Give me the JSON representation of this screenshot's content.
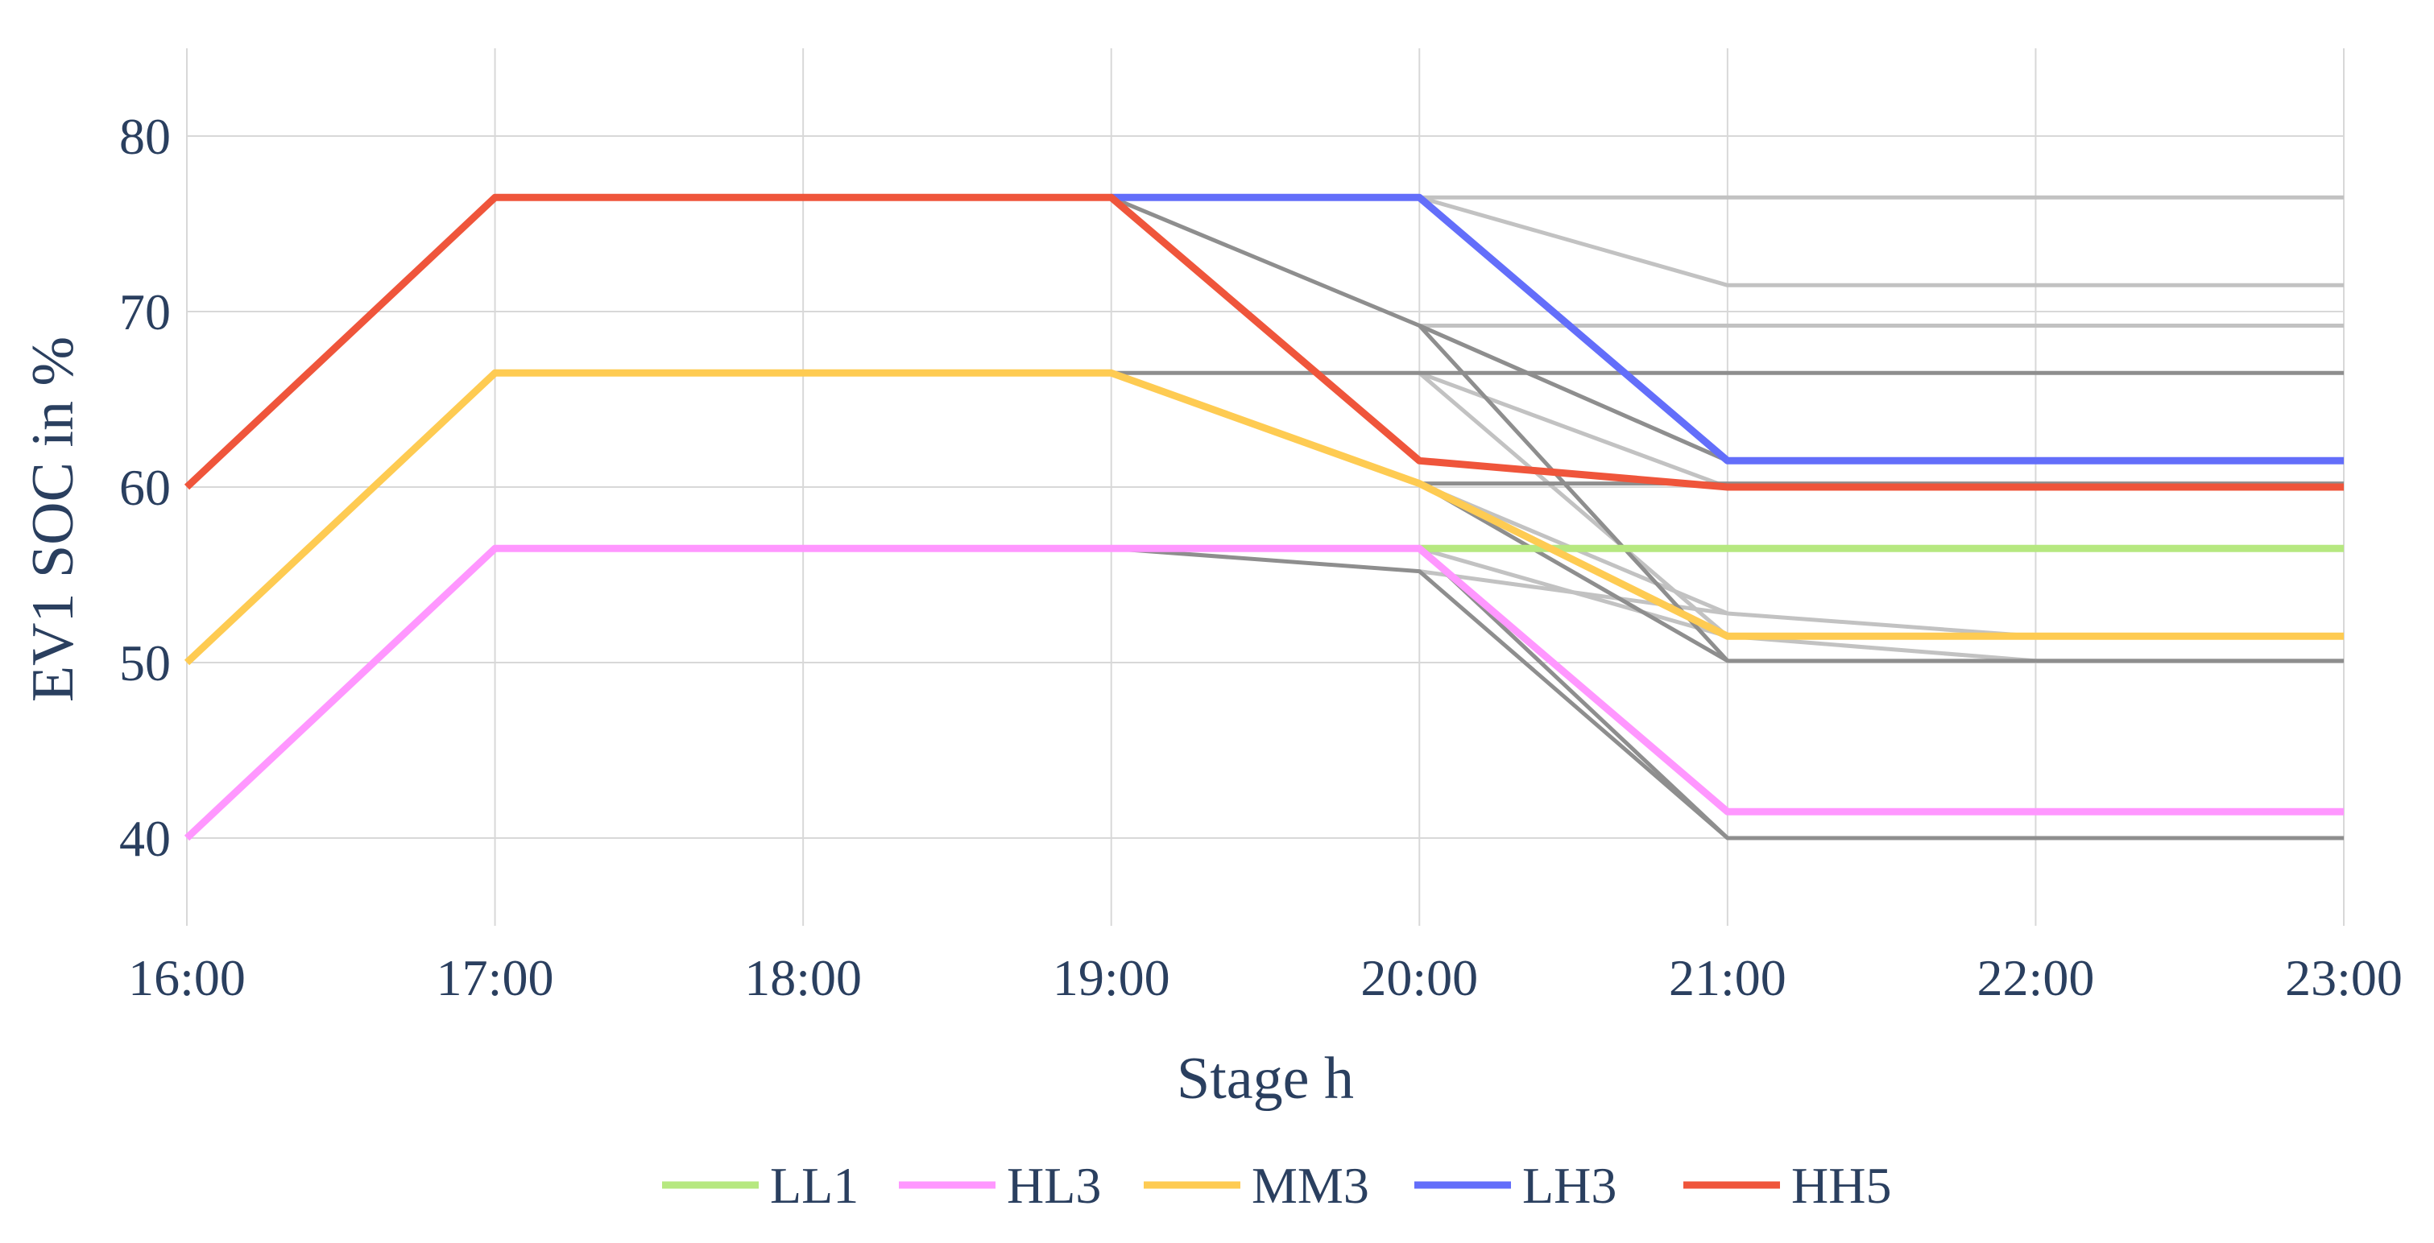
{
  "chart_data": {
    "type": "line",
    "xlabel": "Stage h",
    "ylabel": "EV1 SOC in %",
    "x": [
      "16:00",
      "17:00",
      "18:00",
      "19:00",
      "20:00",
      "21:00",
      "22:00",
      "23:00"
    ],
    "xlim": [
      "16:00",
      "23:00"
    ],
    "ylim": [
      35,
      85
    ],
    "yticks": [
      40,
      50,
      60,
      70,
      80
    ],
    "grid": true,
    "legend_position": "bottom",
    "background_paths": [
      {
        "tone": "light",
        "points": [
          [
            19,
            76.5
          ],
          [
            23,
            76.5
          ]
        ]
      },
      {
        "tone": "light",
        "points": [
          [
            20,
            76.5
          ],
          [
            21,
            71.5
          ],
          [
            23,
            71.5
          ]
        ]
      },
      {
        "tone": "light",
        "points": [
          [
            20,
            69.2
          ],
          [
            23,
            69.2
          ]
        ]
      },
      {
        "tone": "light",
        "points": [
          [
            20,
            76.5
          ],
          [
            21,
            61.5
          ]
        ]
      },
      {
        "tone": "light",
        "points": [
          [
            20,
            69.2
          ],
          [
            21,
            61.5
          ]
        ]
      },
      {
        "tone": "light",
        "points": [
          [
            20,
            66.5
          ],
          [
            21,
            60.0
          ]
        ]
      },
      {
        "tone": "light",
        "points": [
          [
            20,
            66.5
          ],
          [
            21,
            51.5
          ]
        ]
      },
      {
        "tone": "light",
        "points": [
          [
            20,
            60.2
          ],
          [
            21,
            52.8
          ],
          [
            22,
            51.5
          ],
          [
            23,
            51.5
          ]
        ]
      },
      {
        "tone": "light",
        "points": [
          [
            20,
            60.2
          ],
          [
            21,
            51.5
          ],
          [
            22,
            50.1
          ],
          [
            23,
            50.1
          ]
        ]
      },
      {
        "tone": "light",
        "points": [
          [
            20,
            56.5
          ],
          [
            21,
            51.5
          ]
        ]
      },
      {
        "tone": "light",
        "points": [
          [
            20,
            55.2
          ],
          [
            21,
            52.8
          ]
        ]
      },
      {
        "tone": "light",
        "points": [
          [
            20,
            56.5
          ],
          [
            21,
            41.5
          ]
        ]
      },
      {
        "tone": "dark",
        "points": [
          [
            19,
            66.5
          ],
          [
            20,
            66.5
          ],
          [
            23,
            66.5
          ]
        ]
      },
      {
        "tone": "dark",
        "points": [
          [
            19,
            76.5
          ],
          [
            20,
            69.2
          ],
          [
            21,
            61.5
          ]
        ]
      },
      {
        "tone": "dark",
        "points": [
          [
            20,
            60.2
          ],
          [
            23,
            60.2
          ]
        ]
      },
      {
        "tone": "dark",
        "points": [
          [
            20,
            69.2
          ],
          [
            21,
            50.1
          ],
          [
            23,
            50.1
          ]
        ]
      },
      {
        "tone": "dark",
        "points": [
          [
            20,
            60.2
          ],
          [
            21,
            50.1
          ]
        ]
      },
      {
        "tone": "dark",
        "points": [
          [
            19,
            56.5
          ],
          [
            20,
            55.2
          ],
          [
            21,
            40.0
          ],
          [
            23,
            40.0
          ]
        ]
      },
      {
        "tone": "dark",
        "points": [
          [
            20,
            56.5
          ],
          [
            21,
            40.0
          ]
        ]
      }
    ],
    "series": [
      {
        "name": "LL1",
        "color": "#b6e880",
        "points": [
          [
            20,
            56.5
          ],
          [
            21,
            56.5
          ],
          [
            22,
            56.5
          ],
          [
            23,
            56.5
          ]
        ]
      },
      {
        "name": "HL3",
        "color": "#ff97ff",
        "points": [
          [
            16,
            40
          ],
          [
            17,
            56.5
          ],
          [
            18,
            56.5
          ],
          [
            19,
            56.5
          ],
          [
            20,
            56.5
          ],
          [
            21,
            41.5
          ],
          [
            22,
            41.5
          ],
          [
            23,
            41.5
          ]
        ]
      },
      {
        "name": "MM3",
        "color": "#fecb52",
        "points": [
          [
            16,
            50
          ],
          [
            17,
            66.5
          ],
          [
            18,
            66.5
          ],
          [
            19,
            66.5
          ],
          [
            20,
            60.2
          ],
          [
            21,
            51.5
          ],
          [
            22,
            51.5
          ],
          [
            23,
            51.5
          ]
        ]
      },
      {
        "name": "LH3",
        "color": "#636efa",
        "points": [
          [
            19,
            76.5
          ],
          [
            20,
            76.5
          ],
          [
            21,
            61.5
          ],
          [
            22,
            61.5
          ],
          [
            23,
            61.5
          ]
        ]
      },
      {
        "name": "HH5",
        "color": "#ef553b",
        "points": [
          [
            16,
            60
          ],
          [
            17,
            76.5
          ],
          [
            18,
            76.5
          ],
          [
            19,
            76.5
          ],
          [
            20,
            61.5
          ],
          [
            21,
            60.0
          ],
          [
            22,
            60.0
          ],
          [
            23,
            60.0
          ]
        ]
      }
    ],
    "background_colors": {
      "light": "#c2c2c2",
      "dark": "#8e8e8e"
    }
  }
}
